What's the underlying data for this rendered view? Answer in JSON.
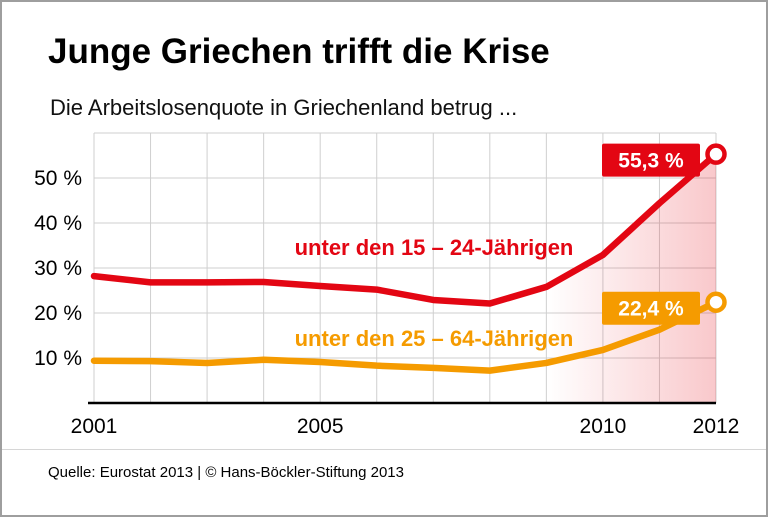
{
  "header": {
    "title": "Junge Griechen trifft die Krise",
    "subtitle": "Die Arbeitslosenquote in Griechenland betrug ..."
  },
  "footer": {
    "source": "Quelle: Eurostat 2013 | © Hans-Böckler-Stiftung 2013"
  },
  "chart_data": {
    "type": "line",
    "title": "Junge Griechen trifft die Krise",
    "subtitle": "Die Arbeitslosenquote in Griechenland betrug ...",
    "x": [
      2001,
      2002,
      2003,
      2004,
      2005,
      2006,
      2007,
      2008,
      2009,
      2010,
      2011,
      2012
    ],
    "series": [
      {
        "name": "unter den 15 – 24-Jährigen",
        "color": "#e30613",
        "values": [
          28.2,
          26.8,
          26.8,
          26.9,
          26.0,
          25.2,
          22.9,
          22.1,
          25.8,
          32.9,
          44.4,
          55.3
        ],
        "end_label": "55,3 %",
        "area_from_x": 2009
      },
      {
        "name": "unter den 25 – 64-Jährigen",
        "color": "#f59b00",
        "values": [
          9.4,
          9.3,
          8.9,
          9.6,
          9.1,
          8.3,
          7.8,
          7.2,
          8.9,
          11.8,
          16.3,
          22.4
        ],
        "end_label": "22,4 %"
      }
    ],
    "xlim": [
      2001,
      2012
    ],
    "ylim": [
      0,
      60
    ],
    "y_ticks": [
      {
        "v": 10,
        "label": "10 %"
      },
      {
        "v": 20,
        "label": "20 %"
      },
      {
        "v": 30,
        "label": "30 %"
      },
      {
        "v": 40,
        "label": "40 %"
      },
      {
        "v": 50,
        "label": "50 %"
      }
    ],
    "x_ticks": [
      {
        "v": 2001,
        "label": "2001"
      },
      {
        "v": 2005,
        "label": "2005"
      },
      {
        "v": 2010,
        "label": "2010"
      },
      {
        "v": 2012,
        "label": "2012"
      }
    ],
    "grid": true,
    "legend_position": "inline-annotations"
  }
}
